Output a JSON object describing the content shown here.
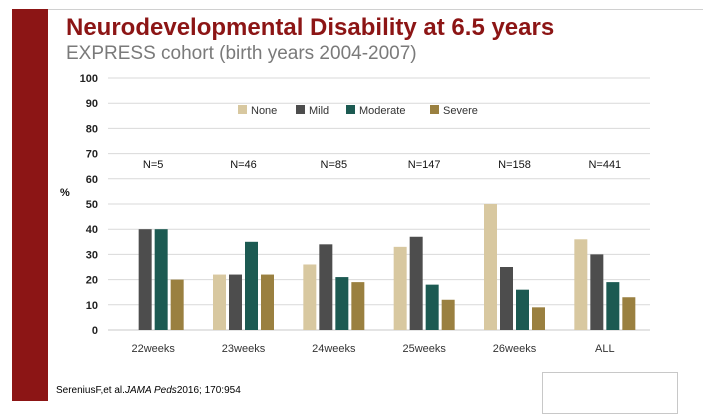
{
  "slide": {
    "title": "Neurodevelopmental Disability at 6.5 years",
    "subtitle": "EXPRESS cohort (birth years 2004-2007)",
    "citation_authors": "SereniusF,et al.",
    "citation_journal": "JAMA Peds",
    "citation_rest": "2016; 170:954"
  },
  "colors": {
    "accent": "#8c1515",
    "subtitle": "#7a7a7a"
  },
  "chart_data": {
    "type": "bar",
    "ylabel": "%",
    "ylim": [
      0,
      100
    ],
    "yticks": [
      0,
      10,
      20,
      30,
      40,
      50,
      60,
      70,
      80,
      90,
      100
    ],
    "grid": true,
    "legend_position": "top-center",
    "categories": [
      "22weeks",
      "23weeks",
      "24weeks",
      "25weeks",
      "26weeks",
      "ALL"
    ],
    "n_labels": [
      "N=5",
      "N=46",
      "N=85",
      "N=147",
      "N=158",
      "N=441"
    ],
    "series": [
      {
        "name": "None",
        "color": "#d8c8a0",
        "values": [
          0,
          22,
          26,
          33,
          50,
          36
        ]
      },
      {
        "name": "Mild",
        "color": "#4d4d4d",
        "values": [
          40,
          22,
          34,
          37,
          25,
          30
        ]
      },
      {
        "name": "Moderate",
        "color": "#1c5a52",
        "values": [
          40,
          35,
          21,
          18,
          16,
          19
        ]
      },
      {
        "name": "Severe",
        "color": "#9a8040",
        "values": [
          20,
          22,
          19,
          12,
          9,
          13
        ]
      }
    ]
  }
}
